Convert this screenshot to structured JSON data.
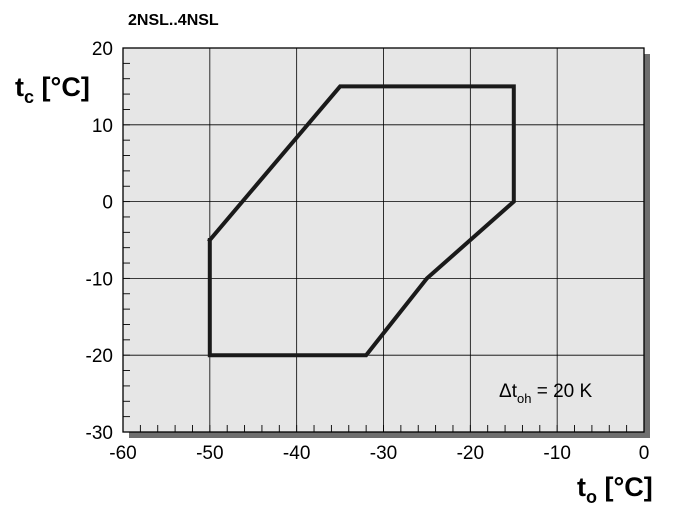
{
  "chart_data": {
    "type": "line",
    "title": "2NSL..4NSL",
    "xlabel": {
      "main": "t",
      "sub": "o",
      "unit": "[°C]"
    },
    "ylabel": {
      "main": "t",
      "sub": "c",
      "unit": "[°C]"
    },
    "xlim": [
      -60,
      0
    ],
    "ylim": [
      -30,
      20
    ],
    "x_ticks": [
      -60,
      -50,
      -40,
      -30,
      -20,
      -10,
      0
    ],
    "y_ticks": [
      -30,
      -20,
      -10,
      0,
      10,
      20
    ],
    "x_tick_labels": [
      "-60",
      "-50",
      "-40",
      "-30",
      "-20",
      "-10",
      "0"
    ],
    "y_tick_labels": [
      "-30",
      "-20",
      "-10",
      "0",
      "10",
      "20"
    ],
    "grid": true,
    "background_color": "#e6e6e6",
    "line_color": "#1a1a1a",
    "series": [
      {
        "closed": true,
        "x": [
          -50,
          -35,
          -15,
          -15,
          -25,
          -32,
          -50,
          -50
        ],
        "y": [
          -5,
          15,
          15,
          0,
          -10,
          -20,
          -20,
          -5
        ]
      }
    ],
    "annotation": {
      "prefix": "Δt",
      "sub": "oh",
      "suffix": " = 20 K"
    }
  }
}
